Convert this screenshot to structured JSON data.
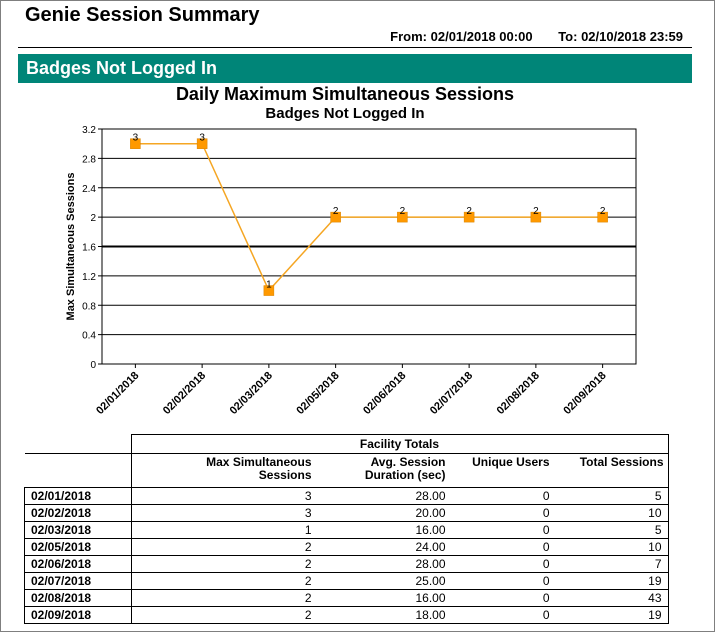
{
  "report": {
    "title": "Genie Session Summary",
    "from_label": "From:",
    "from_value": "02/01/2018 00:00",
    "to_label": "To:",
    "to_value": "02/10/2018 23:59",
    "section_title": "Badges Not Logged In"
  },
  "chart_data": {
    "type": "line",
    "title": "Daily Maximum Simultaneous Sessions",
    "subtitle": "Badges Not Logged In",
    "xlabel": "",
    "ylabel": "Max Simultaneous Sessions",
    "categories": [
      "02/01/2018",
      "02/02/2018",
      "02/03/2018",
      "02/05/2018",
      "02/06/2018",
      "02/07/2018",
      "02/08/2018",
      "02/09/2018"
    ],
    "values": [
      3,
      3,
      1,
      2,
      2,
      2,
      2,
      2
    ],
    "data_labels": [
      "3",
      "3",
      "1",
      "2",
      "2",
      "2",
      "2",
      "2"
    ],
    "ylim": [
      0,
      3.2
    ],
    "yticks": [
      "0",
      "0.4",
      "0.8",
      "1.2",
      "1.6",
      "2",
      "2.4",
      "2.8",
      "3.2"
    ],
    "grid": true,
    "line_color": "#f5a623",
    "marker_color": "#ff9900",
    "table": {
      "group_header": "Facility Totals",
      "columns": [
        {
          "line1": "Max Simultaneous",
          "line2": "Sessions"
        },
        {
          "line1": "Avg. Session",
          "line2": "Duration (sec)"
        },
        {
          "line1": "Unique Users",
          "line2": ""
        },
        {
          "line1": "Total Sessions",
          "line2": ""
        }
      ],
      "rows": [
        {
          "date": "02/01/2018",
          "max": "3",
          "avg": "28.00",
          "unique": "0",
          "total": "5"
        },
        {
          "date": "02/02/2018",
          "max": "3",
          "avg": "20.00",
          "unique": "0",
          "total": "10"
        },
        {
          "date": "02/03/2018",
          "max": "1",
          "avg": "16.00",
          "unique": "0",
          "total": "5"
        },
        {
          "date": "02/05/2018",
          "max": "2",
          "avg": "24.00",
          "unique": "0",
          "total": "10"
        },
        {
          "date": "02/06/2018",
          "max": "2",
          "avg": "28.00",
          "unique": "0",
          "total": "7"
        },
        {
          "date": "02/07/2018",
          "max": "2",
          "avg": "25.00",
          "unique": "0",
          "total": "19"
        },
        {
          "date": "02/08/2018",
          "max": "2",
          "avg": "16.00",
          "unique": "0",
          "total": "43"
        },
        {
          "date": "02/09/2018",
          "max": "2",
          "avg": "18.00",
          "unique": "0",
          "total": "19"
        }
      ]
    }
  },
  "colors": {
    "section_bar": "#008578",
    "section_text": "#ffffff"
  }
}
